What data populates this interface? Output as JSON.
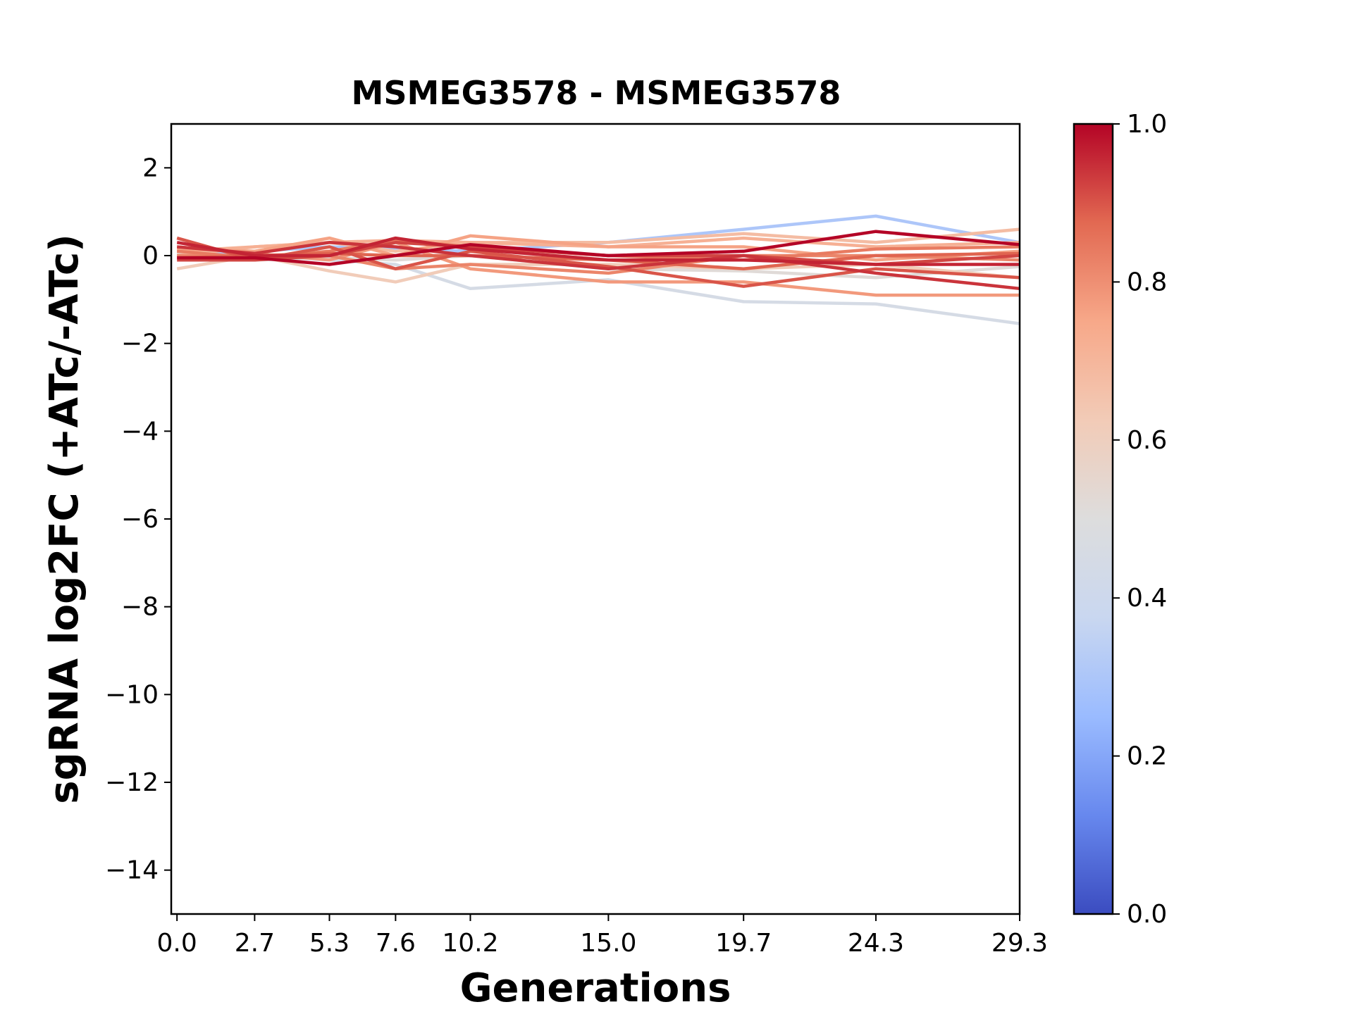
{
  "chart_data": {
    "type": "line",
    "title": "MSMEG3578 - MSMEG3578",
    "xlabel": "Generations",
    "ylabel": "sgRNA log2FC (+ATc/-ATc)",
    "x": [
      0.0,
      2.7,
      5.3,
      7.6,
      10.2,
      15.0,
      19.7,
      24.3,
      29.3
    ],
    "x_tick_labels": [
      "0.0",
      "2.7",
      "5.3",
      "7.6",
      "10.2",
      "15.0",
      "19.7",
      "24.3",
      "29.3"
    ],
    "xlim": [
      -0.2,
      29.3
    ],
    "ylim": [
      -15,
      3
    ],
    "y_ticks": [
      2,
      0,
      -2,
      -4,
      -6,
      -8,
      -10,
      -12,
      -14
    ],
    "y_tick_labels": [
      "2",
      "0",
      "−2",
      "−4",
      "−6",
      "−8",
      "−10",
      "−12",
      "−14"
    ],
    "grid": false,
    "legend": "none",
    "colorbar": {
      "colormap": "coolwarm",
      "range": [
        0.0,
        1.0
      ],
      "ticks": [
        0.0,
        0.2,
        0.4,
        0.6,
        0.8,
        1.0
      ],
      "tick_labels": [
        "0.0",
        "0.2",
        "0.4",
        "0.6",
        "0.8",
        "1.0"
      ],
      "stops": [
        "#3b4cc0",
        "#6788ee",
        "#9abbff",
        "#c9d7f0",
        "#dddddd",
        "#f2cbb7",
        "#f7a889",
        "#e26952",
        "#b40426"
      ]
    },
    "series": [
      {
        "color_value": 0.3,
        "values": [
          0.0,
          0.1,
          0.2,
          0.15,
          0.1,
          0.3,
          0.6,
          0.9,
          0.3
        ]
      },
      {
        "color_value": 0.45,
        "values": [
          0.0,
          0.0,
          -0.1,
          -0.2,
          -0.75,
          -0.55,
          -1.05,
          -1.1,
          -1.55
        ]
      },
      {
        "color_value": 0.52,
        "values": [
          0.05,
          -0.1,
          -0.05,
          -0.1,
          0.0,
          -0.3,
          -0.35,
          -0.5,
          -0.25
        ]
      },
      {
        "color_value": 0.62,
        "values": [
          -0.3,
          0.0,
          -0.35,
          -0.6,
          -0.2,
          -0.2,
          -0.3,
          -0.2,
          -0.5
        ]
      },
      {
        "color_value": 0.68,
        "values": [
          0.0,
          0.2,
          0.3,
          0.1,
          0.3,
          0.3,
          0.5,
          0.3,
          0.6
        ]
      },
      {
        "color_value": 0.72,
        "values": [
          0.1,
          0.2,
          0.3,
          0.35,
          0.3,
          0.2,
          0.4,
          0.2,
          0.3
        ]
      },
      {
        "color_value": 0.76,
        "values": [
          0.15,
          0.1,
          0.4,
          0.0,
          0.45,
          0.2,
          0.2,
          -0.1,
          0.1
        ]
      },
      {
        "color_value": 0.78,
        "values": [
          0.2,
          0.05,
          -0.1,
          0.3,
          -0.3,
          -0.6,
          -0.6,
          -0.9,
          -0.9
        ]
      },
      {
        "color_value": 0.82,
        "values": [
          0.0,
          0.0,
          0.0,
          -0.3,
          -0.2,
          -0.4,
          0.0,
          0.0,
          -0.1
        ]
      },
      {
        "color_value": 0.84,
        "values": [
          0.1,
          -0.05,
          0.1,
          0.35,
          0.2,
          0.0,
          -0.1,
          0.15,
          0.2
        ]
      },
      {
        "color_value": 0.88,
        "values": [
          -0.05,
          0.0,
          0.05,
          0.0,
          0.0,
          -0.1,
          -0.3,
          0.0,
          0.05
        ]
      },
      {
        "color_value": 0.9,
        "values": [
          0.4,
          -0.1,
          0.2,
          -0.3,
          0.1,
          -0.25,
          -0.7,
          -0.3,
          -0.5
        ]
      },
      {
        "color_value": 0.92,
        "values": [
          -0.1,
          -0.1,
          0.0,
          0.3,
          0.2,
          0.0,
          0.0,
          -0.2,
          0.0
        ]
      },
      {
        "color_value": 0.94,
        "values": [
          0.2,
          0.05,
          0.3,
          0.2,
          0.0,
          -0.3,
          0.0,
          -0.4,
          -0.75
        ]
      },
      {
        "color_value": 0.96,
        "values": [
          0.3,
          0.0,
          0.0,
          0.4,
          0.15,
          -0.1,
          -0.1,
          -0.2,
          -0.2
        ]
      },
      {
        "color_value": 1.0,
        "values": [
          -0.05,
          -0.05,
          -0.2,
          0.0,
          0.25,
          0.0,
          0.1,
          0.55,
          0.25
        ]
      }
    ]
  }
}
